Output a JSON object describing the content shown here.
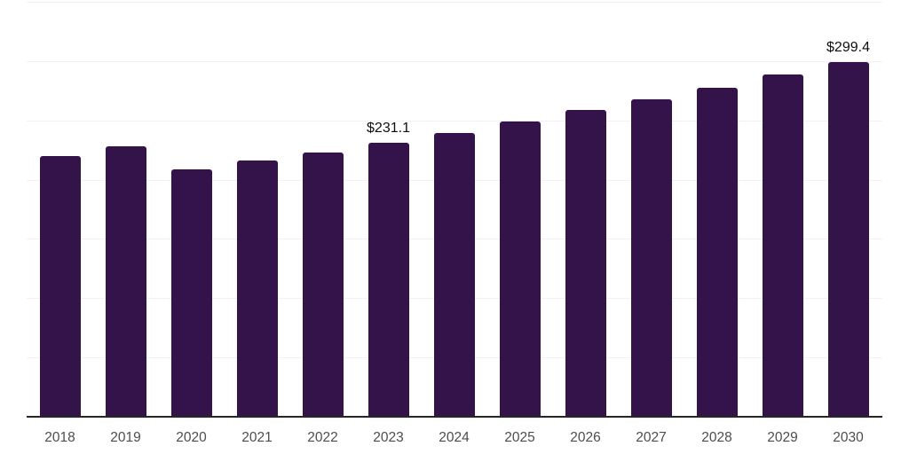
{
  "chart_data": {
    "type": "bar",
    "title": "",
    "xlabel": "",
    "ylabel": "",
    "categories": [
      "2018",
      "2019",
      "2020",
      "2021",
      "2022",
      "2023",
      "2024",
      "2025",
      "2026",
      "2027",
      "2028",
      "2029",
      "2030"
    ],
    "values": [
      220,
      228,
      209,
      216,
      223,
      231.1,
      239,
      249,
      258.5,
      267.5,
      277.5,
      288.5,
      299.4
    ],
    "point_labels": [
      "",
      "",
      "",
      "",
      "",
      "$231.1",
      "",
      "",
      "",
      "",
      "",
      "",
      "$299.4"
    ],
    "ylim": [
      0,
      350
    ],
    "grid_step": 50,
    "grid": "horizontal",
    "y_axis_labels_visible": false,
    "legend": "none"
  },
  "colors": {
    "bar": "#331349",
    "gridline": "#f2f2f2",
    "axis_line": "#262626",
    "data_label": "#0f0f0f",
    "tick_label": "#4d4d4d",
    "background": "#ffffff"
  }
}
